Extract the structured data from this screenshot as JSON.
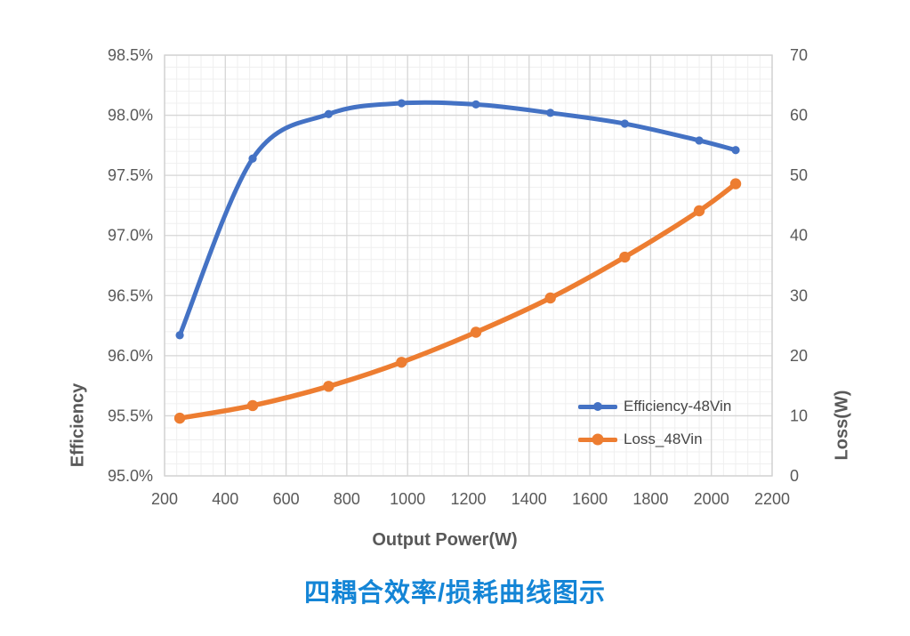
{
  "title": "四耦合效率/损耗曲线图示",
  "title_color": "#1485D6",
  "chart_data": {
    "type": "line",
    "x": [
      250,
      490,
      740,
      980,
      1225,
      1470,
      1715,
      1960,
      2080
    ],
    "series": [
      {
        "name": "Efficiency-48Vin",
        "axis": "left",
        "color": "#4472C4",
        "values": [
          96.17,
          97.64,
          98.01,
          98.1,
          98.09,
          98.02,
          97.93,
          97.79,
          97.71
        ]
      },
      {
        "name": "Loss_48Vin",
        "axis": "right",
        "color": "#ED7D31",
        "values": [
          9.6,
          11.7,
          14.9,
          18.9,
          23.9,
          29.6,
          36.4,
          44.1,
          48.6
        ]
      }
    ],
    "xlabel": "Output Power(W)",
    "ylabel_left": "Efficiency",
    "ylabel_right": "Loss(W)",
    "x_range": [
      200,
      2200
    ],
    "y_left_range": [
      95.0,
      98.5
    ],
    "y_right_range": [
      0,
      70
    ],
    "x_ticks": [
      200,
      400,
      600,
      800,
      1000,
      1200,
      1400,
      1600,
      1800,
      2000,
      2200
    ],
    "y_left_ticks": [
      "95.0%",
      "95.5%",
      "96.0%",
      "96.5%",
      "97.0%",
      "97.5%",
      "98.0%",
      "98.5%"
    ],
    "y_right_ticks": [
      0,
      10,
      20,
      30,
      40,
      50,
      60,
      70
    ],
    "grid": {
      "minor_x_step": 40,
      "minor_y_left_step": 0.1,
      "minor_color": "#EFEFEF",
      "major_color": "#D6D6D6",
      "border_color": "#D2D2D2",
      "legend_position": "inside-right"
    }
  }
}
